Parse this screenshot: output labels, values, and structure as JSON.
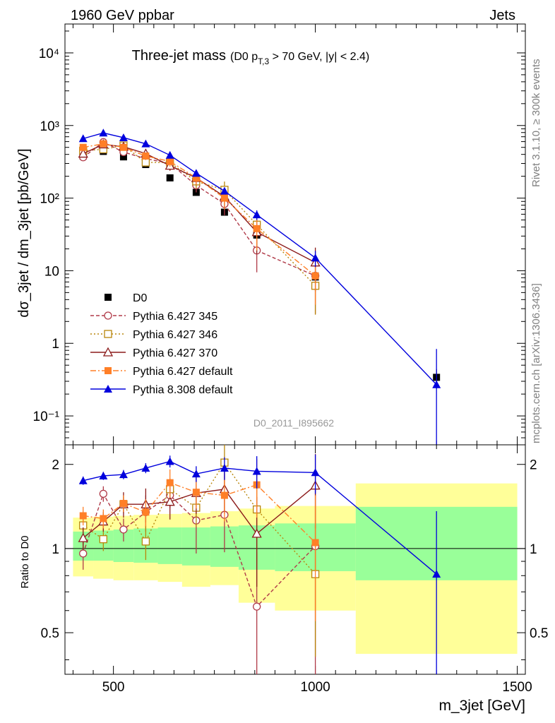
{
  "header": {
    "left": "1960 GeV ppbar",
    "right": "Jets"
  },
  "side": {
    "rivet": "Rivet 3.1.10, ≥ 300k events",
    "mcplots": "mcplots.cern.ch [arXiv:1306.3436]"
  },
  "main_title": "Three-jet mass",
  "main_title_cut": "(D0 p",
  "main_title_cut_sub": "T,3",
  "main_title_cut_tail": " > 70 GeV, |y| < 2.4)",
  "analysis_id": "D0_2011_I895662",
  "chart_data": [
    {
      "type": "line",
      "panel": "main",
      "ylabel": "dσ_3jet / dm_3jet [pb/GeV]",
      "yscale": "log",
      "ylim": [
        0.04,
        25000
      ],
      "xlim": [
        380,
        1520
      ],
      "ytick_labels": [
        "10⁻¹",
        "1",
        "10",
        "10²",
        "10³",
        "10⁴"
      ],
      "ytick_values": [
        0.1,
        1,
        10,
        100,
        1000,
        10000
      ],
      "legend_position": "bottom-left",
      "series": [
        {
          "name": "D0",
          "color": "#000000",
          "marker": "square-filled",
          "line": "none",
          "x": [
            425,
            475,
            525,
            580,
            640,
            705,
            775,
            855,
            1000,
            1300
          ],
          "y": [
            380,
            440,
            370,
            290,
            190,
            120,
            64,
            31,
            8.2,
            0.34
          ],
          "err": [
            0.02,
            0.02,
            0.02,
            0.03,
            0.03,
            0.04,
            0.05,
            0.06,
            0.1,
            0.3
          ]
        },
        {
          "name": "Pythia 6.427 345",
          "color": "#b03a48",
          "marker": "circle-open",
          "line": "dashed",
          "x": [
            425,
            475,
            525,
            580,
            640,
            705,
            775,
            855,
            1000
          ],
          "y": [
            365,
            590,
            430,
            350,
            300,
            150,
            83,
            19,
            8.5
          ],
          "err": [
            0.08,
            0.08,
            0.1,
            0.12,
            0.15,
            0.2,
            0.3,
            0.5,
            0.7
          ]
        },
        {
          "name": "Pythia 6.427 346",
          "color": "#b8860b",
          "marker": "square-open",
          "line": "dotted",
          "x": [
            425,
            475,
            525,
            580,
            640,
            705,
            775,
            855,
            1000
          ],
          "y": [
            450,
            470,
            530,
            310,
            310,
            170,
            130,
            43,
            6.2
          ],
          "err": [
            0.08,
            0.08,
            0.1,
            0.12,
            0.15,
            0.2,
            0.3,
            0.5,
            0.6
          ]
        },
        {
          "name": "Pythia 6.427 370",
          "color": "#8b1a1a",
          "marker": "triangle-open",
          "line": "solid",
          "x": [
            425,
            475,
            525,
            580,
            640,
            705,
            775,
            855,
            1000
          ],
          "y": [
            410,
            550,
            510,
            410,
            280,
            190,
            105,
            34,
            13
          ],
          "err": [
            0.08,
            0.08,
            0.1,
            0.12,
            0.15,
            0.2,
            0.3,
            0.5,
            0.6
          ]
        },
        {
          "name": "Pythia 6.427 default",
          "color": "#ff7f27",
          "marker": "square-filled",
          "line": "dashdot",
          "x": [
            425,
            475,
            525,
            580,
            640,
            705,
            775,
            855,
            1000
          ],
          "y": [
            500,
            560,
            500,
            380,
            320,
            190,
            100,
            38,
            8.5
          ],
          "err": [
            0.08,
            0.08,
            0.1,
            0.12,
            0.15,
            0.2,
            0.3,
            0.5,
            0.6
          ]
        },
        {
          "name": "Pythia 8.308 default",
          "color": "#0000dd",
          "marker": "triangle-filled",
          "line": "solid",
          "x": [
            425,
            475,
            525,
            580,
            640,
            705,
            775,
            855,
            1000,
            1300
          ],
          "y": [
            660,
            790,
            680,
            560,
            390,
            220,
            125,
            59,
            15,
            0.27
          ],
          "err": [
            0.03,
            0.03,
            0.04,
            0.05,
            0.06,
            0.07,
            0.1,
            0.15,
            0.25,
            2.1
          ]
        }
      ]
    },
    {
      "type": "line",
      "panel": "ratio",
      "ylabel": "Ratio to D0",
      "xlabel": "m_3jet [GeV]",
      "yscale": "log",
      "ylim": [
        0.355,
        2.35
      ],
      "xlim": [
        380,
        1520
      ],
      "xtick_values": [
        500,
        1000,
        1500
      ],
      "xtick_labels": [
        "500",
        "1000",
        "1500"
      ],
      "ytick_values": [
        0.5,
        1,
        2
      ],
      "ytick_labels": [
        "0.5",
        "1",
        "2"
      ],
      "bins": [
        {
          "lo": 400,
          "hi": 450,
          "stat": [
            0.905,
            1.15
          ],
          "tot": [
            0.795,
            1.29
          ]
        },
        {
          "lo": 450,
          "hi": 500,
          "stat": [
            0.905,
            1.16
          ],
          "tot": [
            0.78,
            1.3
          ]
        },
        {
          "lo": 500,
          "hi": 550,
          "stat": [
            0.895,
            1.17
          ],
          "tot": [
            0.77,
            1.31
          ]
        },
        {
          "lo": 550,
          "hi": 610,
          "stat": [
            0.89,
            1.18
          ],
          "tot": [
            0.77,
            1.32
          ]
        },
        {
          "lo": 610,
          "hi": 670,
          "stat": [
            0.88,
            1.19
          ],
          "tot": [
            0.76,
            1.33
          ]
        },
        {
          "lo": 670,
          "hi": 740,
          "stat": [
            0.87,
            1.19
          ],
          "tot": [
            0.73,
            1.34
          ]
        },
        {
          "lo": 740,
          "hi": 810,
          "stat": [
            0.86,
            1.2
          ],
          "tot": [
            0.74,
            1.36
          ]
        },
        {
          "lo": 810,
          "hi": 900,
          "stat": [
            0.84,
            1.21
          ],
          "tot": [
            0.64,
            1.39
          ]
        },
        {
          "lo": 900,
          "hi": 1100,
          "stat": [
            0.83,
            1.23
          ],
          "tot": [
            0.6,
            1.42
          ]
        },
        {
          "lo": 1100,
          "hi": 1500,
          "stat": [
            0.77,
            1.41
          ],
          "tot": [
            0.42,
            1.71
          ]
        }
      ],
      "series": [
        {
          "name": "Pythia 6.427 345",
          "color": "#b03a48",
          "marker": "circle-open",
          "line": "dashed",
          "x": [
            425,
            475,
            525,
            580,
            640,
            705,
            775,
            855,
            1000
          ],
          "y": [
            0.96,
            1.57,
            1.17,
            1.35,
            1.55,
            1.26,
            1.32,
            0.62,
            1.02
          ],
          "err_lo": [
            0.12,
            0.1,
            0.11,
            0.2,
            0.15,
            0.3,
            0.35,
            0.35,
            0.7
          ],
          "err_hi": [
            0.12,
            0.1,
            0.11,
            0.2,
            0.15,
            0.3,
            0.35,
            0.35,
            0.7
          ]
        },
        {
          "name": "Pythia 6.427 346",
          "color": "#b8860b",
          "marker": "square-open",
          "line": "dotted",
          "x": [
            425,
            475,
            525,
            580,
            640,
            705,
            775,
            855,
            1000
          ],
          "y": [
            1.21,
            1.08,
            1.44,
            1.06,
            1.63,
            1.4,
            2.03,
            1.38,
            0.81
          ],
          "err_lo": [
            0.08,
            0.1,
            0.1,
            0.15,
            0.15,
            0.2,
            0.4,
            0.5,
            0.4
          ],
          "err_hi": [
            0.08,
            0.1,
            0.1,
            0.15,
            0.15,
            0.2,
            0.4,
            0.5,
            0.4
          ]
        },
        {
          "name": "Pythia 6.427 370",
          "color": "#8b1a1a",
          "marker": "triangle-open",
          "line": "solid",
          "x": [
            425,
            475,
            525,
            580,
            640,
            705,
            775,
            855,
            1000
          ],
          "y": [
            1.09,
            1.25,
            1.44,
            1.44,
            1.47,
            1.58,
            1.63,
            1.13,
            1.68
          ],
          "err_lo": [
            0.1,
            0.1,
            0.15,
            0.2,
            0.2,
            0.25,
            0.3,
            0.4,
            0.5
          ],
          "err_hi": [
            0.1,
            0.1,
            0.15,
            0.2,
            0.2,
            0.25,
            0.3,
            0.4,
            0.5
          ]
        },
        {
          "name": "Pythia 6.427 default",
          "color": "#ff7f27",
          "marker": "square-filled",
          "line": "dashdot",
          "x": [
            425,
            475,
            525,
            580,
            640,
            705,
            775,
            855,
            1000
          ],
          "y": [
            1.31,
            1.28,
            1.45,
            1.35,
            1.72,
            1.59,
            1.55,
            1.69,
            1.05
          ],
          "err_lo": [
            0.1,
            0.1,
            0.1,
            0.15,
            0.2,
            0.2,
            0.3,
            0.4,
            0.5
          ],
          "err_hi": [
            0.1,
            0.1,
            0.1,
            0.15,
            0.2,
            0.2,
            0.3,
            0.4,
            0.5
          ]
        },
        {
          "name": "Pythia 8.308 default",
          "color": "#0000dd",
          "marker": "triangle-filled",
          "line": "solid",
          "x": [
            425,
            475,
            525,
            580,
            640,
            705,
            775,
            855,
            1000,
            1300
          ],
          "y": [
            1.75,
            1.82,
            1.84,
            1.94,
            2.05,
            1.85,
            1.94,
            1.89,
            1.87,
            0.81
          ],
          "err_lo": [
            0.06,
            0.06,
            0.07,
            0.08,
            0.1,
            0.12,
            0.18,
            0.25,
            0.3,
            0.5
          ],
          "err_hi": [
            0.06,
            0.06,
            0.07,
            0.08,
            0.1,
            0.12,
            0.18,
            0.25,
            0.3,
            0.55
          ]
        }
      ]
    }
  ]
}
